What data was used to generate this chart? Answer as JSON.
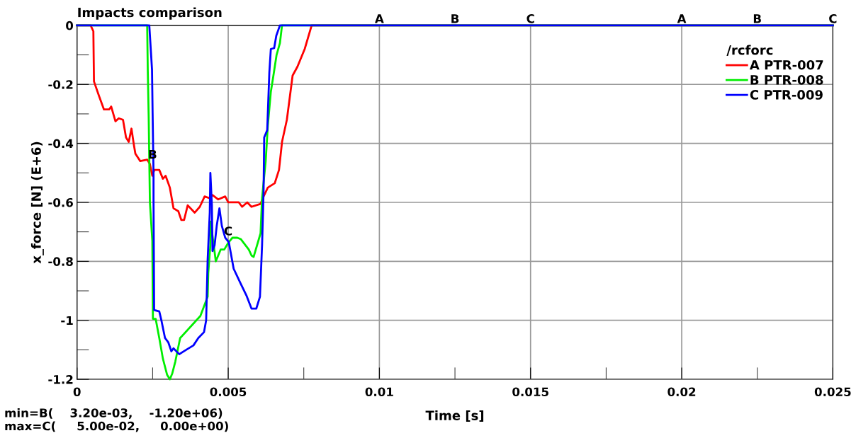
{
  "chart_data": {
    "type": "line",
    "title": "Impacts comparison",
    "xlabel": "Time [s]",
    "ylabel": "x_force [N] (E+6)",
    "legend_title": "/rcforc",
    "xlim": [
      0,
      0.025
    ],
    "ylim": [
      -1.2,
      0
    ],
    "xticks": [
      0,
      0.005,
      0.01,
      0.015,
      0.02,
      0.025
    ],
    "yticks": [
      -1.2,
      -1,
      -0.8,
      -0.6,
      -0.4,
      -0.2,
      0
    ],
    "grid": true,
    "legend": "top right",
    "marker": "none",
    "line_style": "solid",
    "series": [
      {
        "name": "A PTR-007",
        "color": "#ff0000",
        "x": [
          0,
          0.00045,
          0.00054,
          0.00056,
          0.00073,
          0.00089,
          0.00106,
          0.00113,
          0.00127,
          0.00138,
          0.00152,
          0.00162,
          0.00171,
          0.0018,
          0.00188,
          0.00193,
          0.00209,
          0.00232,
          0.00241,
          0.00249,
          0.00256,
          0.00272,
          0.00284,
          0.00293,
          0.00307,
          0.00319,
          0.00335,
          0.00345,
          0.00354,
          0.00366,
          0.00389,
          0.00406,
          0.00422,
          0.00436,
          0.00448,
          0.00467,
          0.0049,
          0.005,
          0.00535,
          0.00546,
          0.00563,
          0.00577,
          0.00607,
          0.00617,
          0.00631,
          0.00654,
          0.00668,
          0.00678,
          0.00694,
          0.00713,
          0.00729,
          0.00753,
          0.00776,
          0.025
        ],
        "values": [
          0,
          0,
          -0.02,
          -0.19,
          -0.24,
          -0.285,
          -0.285,
          -0.275,
          -0.325,
          -0.315,
          -0.32,
          -0.38,
          -0.395,
          -0.35,
          -0.405,
          -0.435,
          -0.46,
          -0.455,
          -0.47,
          -0.51,
          -0.49,
          -0.49,
          -0.52,
          -0.51,
          -0.55,
          -0.62,
          -0.63,
          -0.66,
          -0.66,
          -0.61,
          -0.635,
          -0.615,
          -0.58,
          -0.585,
          -0.575,
          -0.59,
          -0.58,
          -0.6,
          -0.6,
          -0.615,
          -0.6,
          -0.615,
          -0.605,
          -0.58,
          -0.55,
          -0.535,
          -0.49,
          -0.395,
          -0.32,
          -0.17,
          -0.14,
          -0.08,
          0,
          0
        ]
      },
      {
        "name": "B PTR-008",
        "color": "#00ee00",
        "x": [
          0,
          0.00232,
          0.00234,
          0.00237,
          0.00241,
          0.00249,
          0.00251,
          0.0026,
          0.00272,
          0.00284,
          0.00298,
          0.00307,
          0.00315,
          0.00325,
          0.00341,
          0.00341,
          0.00408,
          0.00432,
          0.00434,
          0.00441,
          0.00442,
          0.00459,
          0.00475,
          0.00487,
          0.005,
          0.00514,
          0.0053,
          0.00542,
          0.00568,
          0.00577,
          0.00584,
          0.00607,
          0.00612,
          0.00624,
          0.00631,
          0.00641,
          0.00648,
          0.0066,
          0.00671,
          0.00678,
          0.025
        ],
        "values": [
          0,
          0,
          -0.155,
          -0.31,
          -0.6,
          -0.73,
          -0.995,
          -0.995,
          -1.06,
          -1.13,
          -1.185,
          -1.2,
          -1.18,
          -1.14,
          -1.06,
          -1.06,
          -0.985,
          -0.92,
          -0.84,
          -0.745,
          -0.665,
          -0.8,
          -0.76,
          -0.76,
          -0.737,
          -0.72,
          -0.72,
          -0.725,
          -0.76,
          -0.78,
          -0.785,
          -0.705,
          -0.585,
          -0.46,
          -0.34,
          -0.225,
          -0.18,
          -0.1,
          -0.06,
          0,
          0
        ]
      },
      {
        "name": "C PTR-009",
        "color": "#0000ff",
        "x": [
          0,
          0.00239,
          0.00248,
          0.0025,
          0.00253,
          0.00253,
          0.00255,
          0.00272,
          0.00279,
          0.00291,
          0.00302,
          0.00312,
          0.00319,
          0.00338,
          0.00361,
          0.00385,
          0.00401,
          0.0042,
          0.00427,
          0.00432,
          0.00439,
          0.00441,
          0.00446,
          0.00448,
          0.00455,
          0.00462,
          0.00471,
          0.00479,
          0.0049,
          0.00502,
          0.00518,
          0.00541,
          0.0056,
          0.00577,
          0.00593,
          0.00605,
          0.00612,
          0.00617,
          0.00619,
          0.00629,
          0.00636,
          0.00641,
          0.00652,
          0.00659,
          0.00671,
          0.025
        ],
        "values": [
          0,
          0,
          -0.15,
          -0.3,
          -0.505,
          -0.59,
          -0.965,
          -0.97,
          -1.0,
          -1.06,
          -1.075,
          -1.105,
          -1.095,
          -1.115,
          -1.1,
          -1.085,
          -1.06,
          -1.04,
          -1.0,
          -0.795,
          -0.635,
          -0.5,
          -0.61,
          -0.765,
          -0.745,
          -0.68,
          -0.62,
          -0.68,
          -0.72,
          -0.735,
          -0.825,
          -0.875,
          -0.915,
          -0.96,
          -0.96,
          -0.92,
          -0.745,
          -0.56,
          -0.38,
          -0.355,
          -0.16,
          -0.08,
          -0.077,
          -0.035,
          0,
          0
        ]
      }
    ],
    "annotations": [
      {
        "text": "B",
        "x": 0.0025,
        "y": -0.46
      },
      {
        "text": "C",
        "x": 0.005,
        "y": -0.72
      },
      {
        "text": "A",
        "x": 0.01,
        "y": 0
      },
      {
        "text": "B",
        "x": 0.0125,
        "y": 0
      },
      {
        "text": "C",
        "x": 0.015,
        "y": 0
      },
      {
        "text": "A",
        "x": 0.02,
        "y": 0
      },
      {
        "text": "B",
        "x": 0.0225,
        "y": 0
      },
      {
        "text": "C",
        "x": 0.025,
        "y": 0
      },
      "min=B(    3.20e-03,    -1.20e+06)",
      "max=C(     5.00e-02,     0.00e+00)"
    ]
  }
}
